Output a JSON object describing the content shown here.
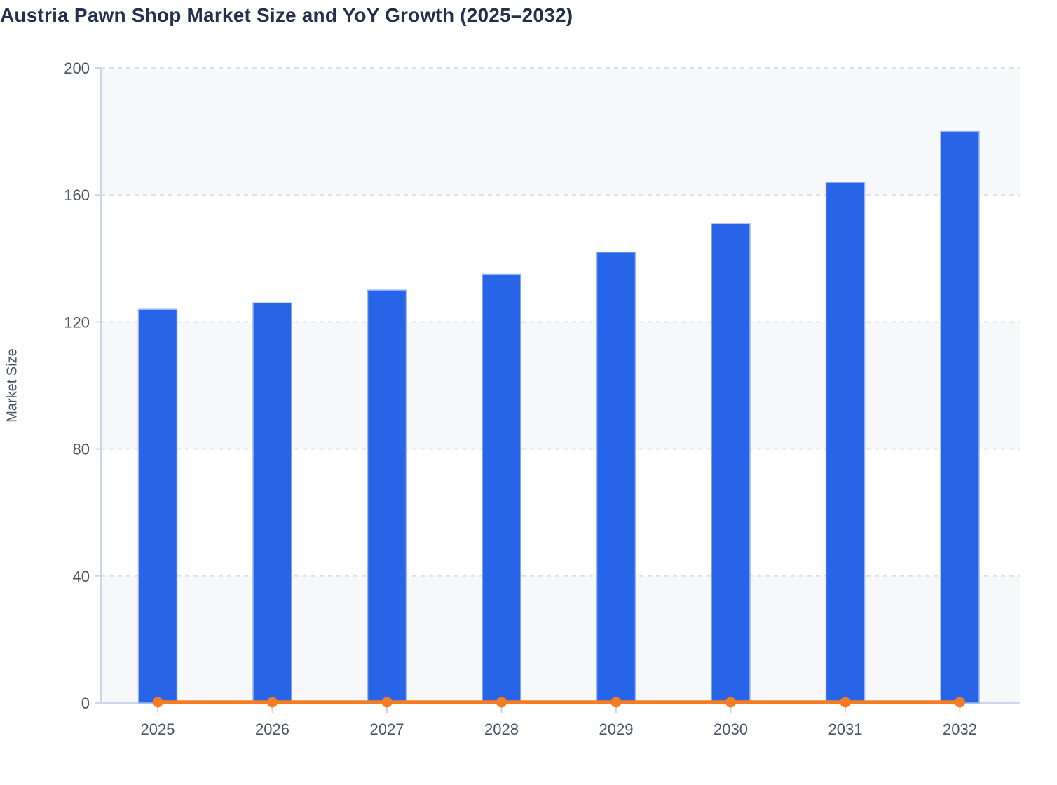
{
  "colors": {
    "bar_fill": "#2764e8",
    "bar_stroke": "#9cb8f0",
    "line": "#f57c20",
    "marker": "#f57c20",
    "title_text": "#21304d",
    "tick_text": "#4a5568",
    "axis_line": "#ccd6eb",
    "gridline": "#dcdfe3",
    "band_shade": "#f7f8fa",
    "band_plain": "#ffffff"
  },
  "chart_data": {
    "type": "bar",
    "title": "Austria Pawn Shop Market Size and YoY Growth (2025–2032)",
    "categories": [
      "2025",
      "2026",
      "2027",
      "2028",
      "2029",
      "2030",
      "2031",
      "2032"
    ],
    "series": [
      {
        "name": "Market Size",
        "type": "bar",
        "values": [
          124,
          126,
          130,
          135,
          142,
          151,
          164,
          180
        ]
      },
      {
        "name": "YoY Growth",
        "type": "line",
        "values": [
          0,
          0,
          0,
          0,
          0,
          0,
          0,
          0
        ]
      }
    ],
    "xlabel": "",
    "ylabel": "Market Size",
    "ylim": [
      0,
      200
    ],
    "yticks": [
      0,
      40,
      80,
      120,
      160,
      200
    ],
    "grid": "horizontal-dashed",
    "alternating_bands": true,
    "legend_position": "none"
  }
}
